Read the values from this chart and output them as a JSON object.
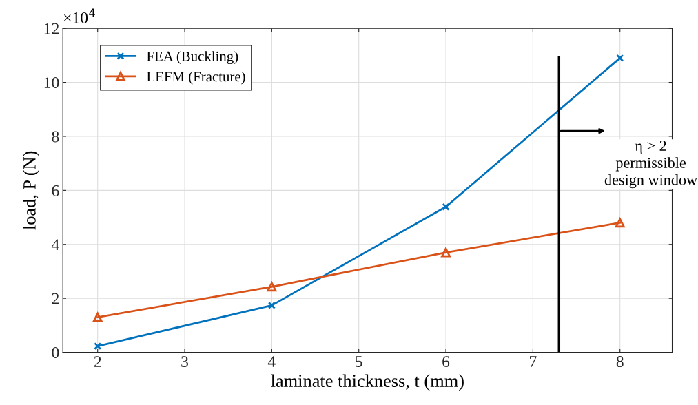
{
  "chart_data": {
    "type": "line",
    "xlabel": "laminate thickness, t (mm)",
    "ylabel": "load, P (N)",
    "x": [
      2,
      4,
      6,
      8
    ],
    "series": [
      {
        "name": "FEA (Buckling)",
        "color": "#0072bd",
        "marker": "cross",
        "values": [
          0.23,
          1.74,
          5.39,
          10.9
        ]
      },
      {
        "name": "LEFM (Fracture)",
        "color": "#d95319",
        "marker": "triangle",
        "values": [
          1.3,
          2.43,
          3.7,
          4.8
        ]
      }
    ],
    "xlim": [
      1.6,
      8.6
    ],
    "xticks": [
      2,
      3,
      4,
      5,
      6,
      7,
      8
    ],
    "ylim": [
      0,
      12
    ],
    "yticks": [
      0,
      2,
      4,
      6,
      8,
      10,
      12
    ],
    "grid": true,
    "legend": "top left",
    "line_style": "solid",
    "ref_lines": [
      {
        "axis": "x",
        "value": 7.3,
        "color": "#000000"
      }
    ],
    "annotations": [
      "×10$^{4}$",
      "η > 2\npermissible\ndesign window"
    ]
  }
}
